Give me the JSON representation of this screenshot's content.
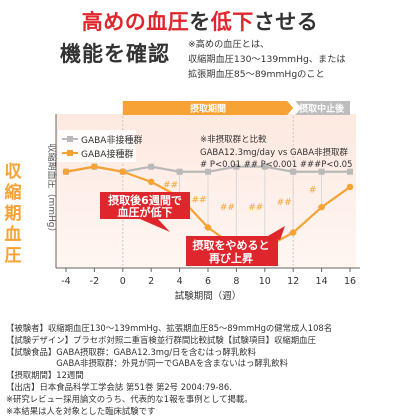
{
  "header": {
    "title_part1": "高めの血圧",
    "title_part2": "を",
    "title_part3": "低下",
    "title_part4": "させる",
    "title_line2": "機能を確認",
    "note_line1": "※高めの血圧とは、",
    "note_line2": "収縮期血圧130～139mmHg、または",
    "note_line3": "拡張期血圧85～89mmHgのこと"
  },
  "side_label": [
    "収",
    "縮",
    "期",
    "血",
    "圧"
  ],
  "colors": {
    "accent_red": "#e0262d",
    "orange": "#f7a234",
    "gray_line": "#b9b9b9",
    "intake_band": "#f7a234",
    "stop_band": "#bdbdbd"
  },
  "chart_data": {
    "type": "line",
    "ylabel": "収縮期血圧（mmHg）",
    "xlabel": "試験期間（週）",
    "x_ticks": [
      "-4",
      "-2",
      "0",
      "2",
      "4",
      "6",
      "8",
      "10",
      "12",
      "14",
      "16"
    ],
    "xlim": [
      -4,
      16
    ],
    "ylim": [
      124,
      139
    ],
    "series": [
      {
        "name": "GABA非接種群",
        "x": [
          -4,
          -2,
          0,
          2,
          4,
          6,
          8,
          10,
          12,
          14,
          16
        ],
        "values": [
          133.5,
          134,
          133.5,
          134,
          133.5,
          133.5,
          134,
          134,
          133.5,
          133.5,
          133.5
        ]
      },
      {
        "name": "GABA接種群",
        "x": [
          -4,
          -2,
          0,
          2,
          4,
          6,
          8,
          10,
          12,
          14,
          16
        ],
        "values": [
          133.5,
          134,
          133.5,
          132.5,
          131,
          128,
          126,
          126,
          127.5,
          130,
          132
        ]
      }
    ],
    "period_bands": [
      {
        "label": "摂取期間",
        "x_start": 0,
        "x_end": 12
      },
      {
        "label": "摂取中止後",
        "x_start": 12,
        "x_end": 16
      }
    ],
    "comparison_note_title": "※非摂取群と比較",
    "comparison_note_line2": "GABA12.3mg/day vs GABA非摂取群",
    "comparison_note_line3": "# P<0.01 ## P<0.001 ###P<0.05",
    "significance_marks": [
      {
        "x": 4,
        "label": "##"
      },
      {
        "x": 6,
        "label": "##"
      },
      {
        "x": 8,
        "label": "##"
      },
      {
        "x": 10,
        "label": "##"
      },
      {
        "x": 12,
        "label": "##"
      },
      {
        "x": 14,
        "label": "#"
      }
    ],
    "callout1_line1": "摂取後6週間で",
    "callout1_line2": "血圧が低下",
    "callout2_line1": "摂取をやめると",
    "callout2_line2": "再び上昇"
  },
  "footer": [
    "【被験者】収縮期血圧130～139mmHg、拡張期血圧85～89mmHgの健常成人108名",
    "【試験デザイン】プラセボ対照二重盲検並行群間比較試験【試験項目】収縮期血圧",
    "【試験食品】GABA摂取群：GABA12.3mg/日を含むはっ酵乳飲料",
    "　　　　　　GABA非摂取群：外見が同一でGABAを含まないはっ酵乳飲料",
    "【摂取期間】12週間",
    "【出店】日本食品科学工学会誌 第51巻 第2号 2004:79-86.",
    "※研究レビュー採用論文のうち、代表的な1報を事例として掲載。",
    "※本結果は人を対象とした臨床試験です"
  ]
}
